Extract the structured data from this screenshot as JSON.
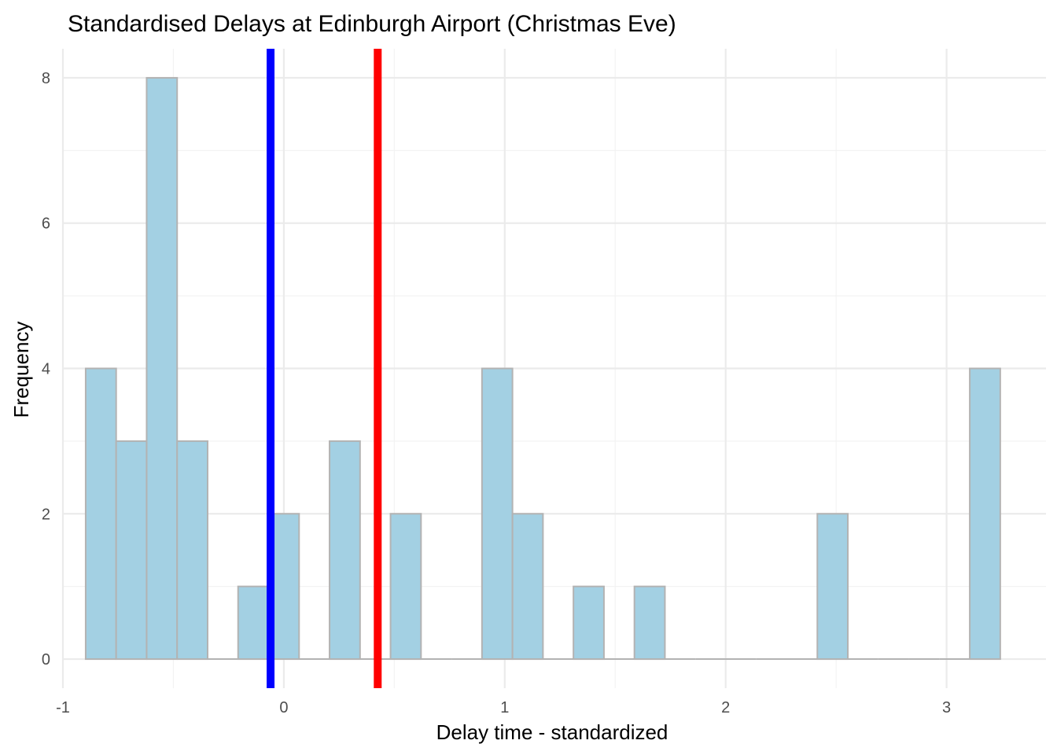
{
  "chart_data": {
    "type": "bar",
    "title": "Standardised Delays at Edinburgh Airport (Christmas Eve)",
    "xlabel": "Delay time - standardized",
    "ylabel": "Frequency",
    "xlim": [
      -1.0,
      3.45
    ],
    "ylim": [
      -0.4,
      8.4
    ],
    "bin_width": 0.1379,
    "x_ticks": [
      -1,
      0,
      1,
      2,
      3
    ],
    "x_tick_labels": [
      "-1",
      "0",
      "1",
      "2",
      "3"
    ],
    "y_ticks": [
      0,
      2,
      4,
      6,
      8
    ],
    "y_tick_labels": [
      "0",
      "2",
      "4",
      "6",
      "8"
    ],
    "bins": [
      {
        "x0": -0.897,
        "x1": -0.759,
        "count": 4
      },
      {
        "x0": -0.759,
        "x1": -0.621,
        "count": 3
      },
      {
        "x0": -0.621,
        "x1": -0.483,
        "count": 8
      },
      {
        "x0": -0.483,
        "x1": -0.345,
        "count": 3
      },
      {
        "x0": -0.345,
        "x1": -0.207,
        "count": 0
      },
      {
        "x0": -0.207,
        "x1": -0.069,
        "count": 1
      },
      {
        "x0": -0.069,
        "x1": 0.069,
        "count": 2
      },
      {
        "x0": 0.069,
        "x1": 0.207,
        "count": 0
      },
      {
        "x0": 0.207,
        "x1": 0.345,
        "count": 3
      },
      {
        "x0": 0.345,
        "x1": 0.483,
        "count": 0
      },
      {
        "x0": 0.483,
        "x1": 0.621,
        "count": 2
      },
      {
        "x0": 0.621,
        "x1": 0.759,
        "count": 0
      },
      {
        "x0": 0.759,
        "x1": 0.897,
        "count": 0
      },
      {
        "x0": 0.897,
        "x1": 1.035,
        "count": 4
      },
      {
        "x0": 1.035,
        "x1": 1.173,
        "count": 2
      },
      {
        "x0": 1.173,
        "x1": 1.311,
        "count": 0
      },
      {
        "x0": 1.311,
        "x1": 1.449,
        "count": 1
      },
      {
        "x0": 1.449,
        "x1": 1.587,
        "count": 0
      },
      {
        "x0": 1.587,
        "x1": 1.725,
        "count": 1
      },
      {
        "x0": 1.725,
        "x1": 1.863,
        "count": 0
      },
      {
        "x0": 1.863,
        "x1": 2.001,
        "count": 0
      },
      {
        "x0": 2.001,
        "x1": 2.139,
        "count": 0
      },
      {
        "x0": 2.139,
        "x1": 2.277,
        "count": 0
      },
      {
        "x0": 2.277,
        "x1": 2.415,
        "count": 0
      },
      {
        "x0": 2.415,
        "x1": 2.553,
        "count": 2
      },
      {
        "x0": 2.553,
        "x1": 2.691,
        "count": 0
      },
      {
        "x0": 2.691,
        "x1": 2.829,
        "count": 0
      },
      {
        "x0": 2.829,
        "x1": 2.967,
        "count": 0
      },
      {
        "x0": 2.967,
        "x1": 3.105,
        "count": 0
      },
      {
        "x0": 3.105,
        "x1": 3.243,
        "count": 4
      }
    ],
    "reference_lines": [
      {
        "x": -0.06,
        "color": "#0000ff"
      },
      {
        "x": 0.425,
        "color": "#ff0000"
      }
    ],
    "colors": {
      "bar_fill": "#a3d0e3",
      "bar_stroke": "#b3b3b3",
      "grid_major": "#ebebeb",
      "grid_minor": "#f3f3f3"
    },
    "grid": true,
    "legend": "none"
  }
}
